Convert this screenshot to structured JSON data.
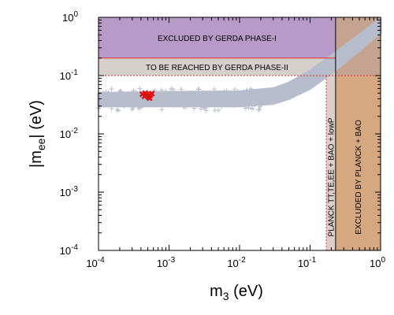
{
  "chart_data": {
    "type": "scatter",
    "x_scale": "log",
    "y_scale": "log",
    "xlim": [
      0.0001,
      1
    ],
    "ylim": [
      0.0001,
      1
    ],
    "grid": false,
    "xlabel": {
      "main": "m",
      "sub": "3",
      "unit": " (eV)"
    },
    "ylabel": {
      "main": "|m",
      "sub": "ee",
      "tail": "| (eV)"
    },
    "x_ticks": [
      {
        "value": 0.0001,
        "base": "10",
        "exp": "-4"
      },
      {
        "value": 0.001,
        "base": "10",
        "exp": "-3"
      },
      {
        "value": 0.01,
        "base": "10",
        "exp": "-2"
      },
      {
        "value": 0.1,
        "base": "10",
        "exp": "-1"
      },
      {
        "value": 1,
        "base": "10",
        "exp": "0"
      }
    ],
    "y_ticks": [
      {
        "value": 0.0001,
        "base": "10",
        "exp": "-4"
      },
      {
        "value": 0.001,
        "base": "10",
        "exp": "-3"
      },
      {
        "value": 0.01,
        "base": "10",
        "exp": "-2"
      },
      {
        "value": 0.1,
        "base": "10",
        "exp": "-1"
      },
      {
        "value": 1,
        "base": "10",
        "exp": "0"
      }
    ],
    "colors": {
      "gerda_phase1": "#b89ac8",
      "gerda_phase2": "#d6cfcc",
      "planck_tt": "#ddd0cc",
      "planck_bao": "#d5a880",
      "overlap": "#c4a490",
      "band": "#b7bdcc",
      "highlight": "#dd1010",
      "boundary": "#e03030"
    },
    "regions": {
      "gerda_phase1": {
        "label": "EXCLUDED BY GERDA PHASE-I",
        "y_min": 0.2,
        "y_max": 1
      },
      "gerda_phase2": {
        "label": "TO BE REACHED BY GERDA PHASE-II",
        "y_min": 0.1,
        "y_max": 0.2
      },
      "planck_tt": {
        "label": "PLANCK TT,TE,EE + BAO + lowP",
        "x_min": 0.17,
        "x_max": 0.23
      },
      "planck_bao": {
        "label": "EXCLUDED BY PLANCK + BAO",
        "x_min": 0.23,
        "x_max": 1
      }
    },
    "band": {
      "x_range": [
        0.0001,
        1
      ],
      "lower": [
        [
          0.0001,
          0.03
        ],
        [
          0.001,
          0.03
        ],
        [
          0.01,
          0.03
        ],
        [
          0.03,
          0.033
        ],
        [
          0.05,
          0.04
        ],
        [
          0.1,
          0.06
        ],
        [
          0.2,
          0.11
        ],
        [
          0.5,
          0.27
        ],
        [
          1,
          0.55
        ]
      ],
      "upper": [
        [
          0.0001,
          0.05
        ],
        [
          0.001,
          0.052
        ],
        [
          0.01,
          0.053
        ],
        [
          0.03,
          0.06
        ],
        [
          0.05,
          0.075
        ],
        [
          0.1,
          0.12
        ],
        [
          0.2,
          0.22
        ],
        [
          0.5,
          0.5
        ],
        [
          1,
          0.95
        ]
      ]
    },
    "highlight_points": [
      {
        "x": 0.00042,
        "y": 0.048
      },
      {
        "x": 0.00045,
        "y": 0.044
      },
      {
        "x": 0.00048,
        "y": 0.047
      },
      {
        "x": 0.00051,
        "y": 0.043
      },
      {
        "x": 0.00054,
        "y": 0.046
      },
      {
        "x": 0.00057,
        "y": 0.049
      },
      {
        "x": 0.00046,
        "y": 0.05
      },
      {
        "x": 0.00053,
        "y": 0.041
      }
    ]
  }
}
